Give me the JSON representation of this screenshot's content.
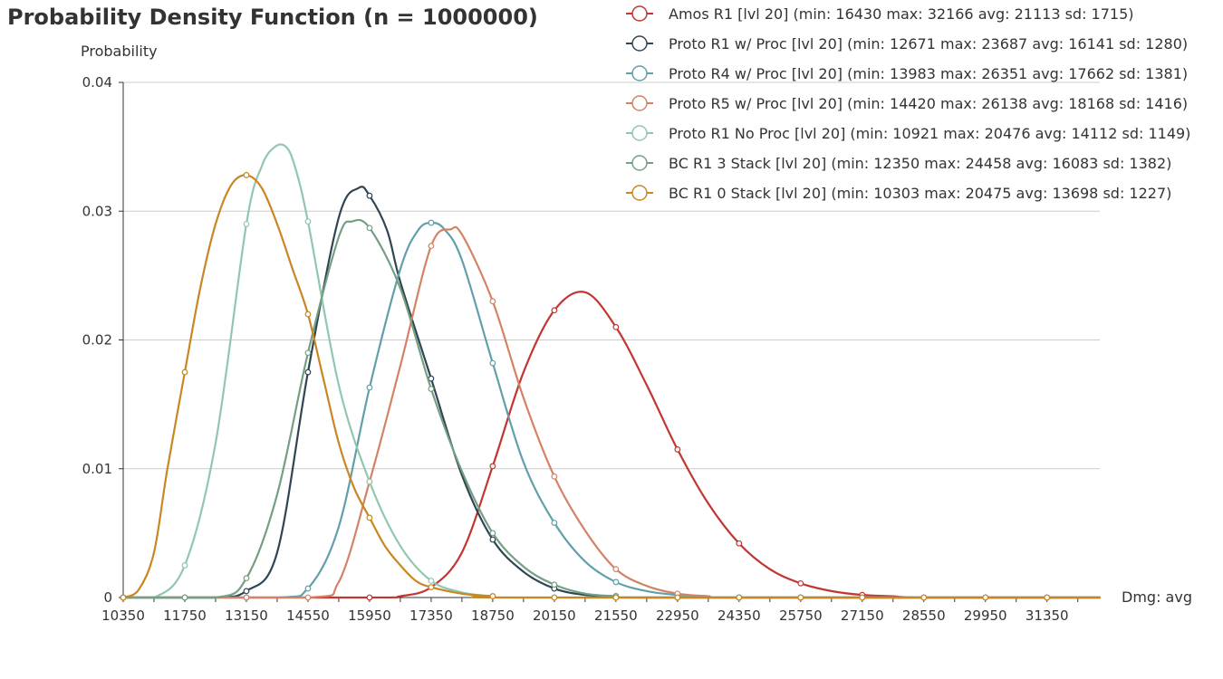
{
  "chart_data": {
    "type": "line",
    "title": "Probability Density Function (n = 1000000)",
    "xlabel": "Dmg: avg",
    "ylabel": "Probability",
    "xlim": [
      10350,
      32550
    ],
    "ylim": [
      0,
      0.04
    ],
    "x_ticks": [
      "10350",
      "11750",
      "13150",
      "14550",
      "15950",
      "17350",
      "18750",
      "20150",
      "21550",
      "22950",
      "24350",
      "25750",
      "27150",
      "28550",
      "29950",
      "31350"
    ],
    "y_ticks": [
      "0",
      "0.01",
      "0.02",
      "0.03",
      "0.04"
    ],
    "grid": true,
    "legend_position": "top-right",
    "series": [
      {
        "name": "Amos R1 [lvl 20] (min: 16430 max: 32166 avg: 21113 sd: 1715)",
        "color": "#c23531",
        "points": [
          [
            10350,
            0
          ],
          [
            15950,
            0
          ],
          [
            16650,
            0.0001
          ],
          [
            17350,
            0.0008
          ],
          [
            18050,
            0.0035
          ],
          [
            18750,
            0.0102
          ],
          [
            19450,
            0.0175
          ],
          [
            20150,
            0.0223
          ],
          [
            20850,
            0.0237
          ],
          [
            21550,
            0.021
          ],
          [
            22250,
            0.0165
          ],
          [
            22950,
            0.0115
          ],
          [
            23650,
            0.0073
          ],
          [
            24350,
            0.0042
          ],
          [
            25050,
            0.0022
          ],
          [
            25750,
            0.0011
          ],
          [
            26450,
            0.0005
          ],
          [
            27150,
            0.0002
          ],
          [
            27850,
            0.0001
          ],
          [
            28550,
            0
          ],
          [
            32550,
            0
          ]
        ],
        "markers": [
          [
            10350,
            0
          ],
          [
            13150,
            0
          ],
          [
            15950,
            0
          ],
          [
            18750,
            0.0102
          ],
          [
            20150,
            0.0223
          ],
          [
            21550,
            0.021
          ],
          [
            22950,
            0.0115
          ],
          [
            24350,
            0.0042
          ],
          [
            25750,
            0.0011
          ],
          [
            27150,
            0.0002
          ],
          [
            28550,
            0
          ],
          [
            29950,
            0
          ],
          [
            31350,
            0
          ]
        ]
      },
      {
        "name": "Proto R1 w/ Proc [lvl 20] (min: 12671 max: 23687 avg: 16141 sd: 1280)",
        "color": "#2f4554",
        "points": [
          [
            10350,
            0
          ],
          [
            12450,
            0
          ],
          [
            13150,
            0.0005
          ],
          [
            13850,
            0.0035
          ],
          [
            14550,
            0.0175
          ],
          [
            15250,
            0.0295
          ],
          [
            15700,
            0.0318
          ],
          [
            15950,
            0.0312
          ],
          [
            16350,
            0.0285
          ],
          [
            16650,
            0.0245
          ],
          [
            17350,
            0.017
          ],
          [
            18050,
            0.0095
          ],
          [
            18750,
            0.0045
          ],
          [
            19450,
            0.002
          ],
          [
            20150,
            0.0007
          ],
          [
            20850,
            0.0002
          ],
          [
            21550,
            0.0001
          ],
          [
            22250,
            0
          ],
          [
            32550,
            0
          ]
        ],
        "markers": [
          [
            10350,
            0
          ],
          [
            11750,
            0
          ],
          [
            13150,
            0.0005
          ],
          [
            14550,
            0.0175
          ],
          [
            15950,
            0.0312
          ],
          [
            17350,
            0.017
          ],
          [
            18750,
            0.0045
          ],
          [
            20150,
            0.0007
          ],
          [
            21550,
            0.0001
          ],
          [
            22950,
            0
          ],
          [
            24350,
            0
          ],
          [
            25750,
            0
          ]
        ]
      },
      {
        "name": "Proto R4 w/ Proc [lvl 20] (min: 13983 max: 26351 avg: 17662 sd: 1381)",
        "color": "#61a0a8",
        "points": [
          [
            10350,
            0
          ],
          [
            13850,
            0
          ],
          [
            14550,
            0.0007
          ],
          [
            15250,
            0.0055
          ],
          [
            15950,
            0.0163
          ],
          [
            16650,
            0.0255
          ],
          [
            17050,
            0.0285
          ],
          [
            17350,
            0.0291
          ],
          [
            17650,
            0.0286
          ],
          [
            18050,
            0.0262
          ],
          [
            18750,
            0.0182
          ],
          [
            19450,
            0.0105
          ],
          [
            20150,
            0.0058
          ],
          [
            20850,
            0.0028
          ],
          [
            21550,
            0.0012
          ],
          [
            22250,
            0.0005
          ],
          [
            22950,
            0.0002
          ],
          [
            23650,
            0.0001
          ],
          [
            24350,
            0
          ],
          [
            32550,
            0
          ]
        ],
        "markers": [
          [
            10350,
            0
          ],
          [
            13150,
            0
          ],
          [
            14550,
            0.0007
          ],
          [
            15950,
            0.0163
          ],
          [
            17350,
            0.0291
          ],
          [
            18750,
            0.0182
          ],
          [
            20150,
            0.0058
          ],
          [
            21550,
            0.0012
          ],
          [
            22950,
            0.0002
          ],
          [
            24350,
            0
          ],
          [
            25750,
            0
          ],
          [
            27150,
            0
          ]
        ]
      },
      {
        "name": "Proto R5 w/ Proc [lvl 20] (min: 14420 max: 26138 avg: 18168 sd: 1416)",
        "color": "#d48265",
        "points": [
          [
            10350,
            0
          ],
          [
            14550,
            0
          ],
          [
            15250,
            0.0012
          ],
          [
            15950,
            0.009
          ],
          [
            16650,
            0.018
          ],
          [
            17350,
            0.0273
          ],
          [
            17800,
            0.0286
          ],
          [
            18050,
            0.0282
          ],
          [
            18750,
            0.023
          ],
          [
            19450,
            0.0155
          ],
          [
            20150,
            0.0094
          ],
          [
            20850,
            0.0052
          ],
          [
            21550,
            0.0022
          ],
          [
            22250,
            0.0009
          ],
          [
            22950,
            0.0003
          ],
          [
            23650,
            0.0001
          ],
          [
            24350,
            0
          ],
          [
            32550,
            0
          ]
        ],
        "markers": [
          [
            10350,
            0
          ],
          [
            13150,
            0
          ],
          [
            14550,
            0
          ],
          [
            15950,
            0.009
          ],
          [
            17350,
            0.0273
          ],
          [
            18750,
            0.023
          ],
          [
            20150,
            0.0094
          ],
          [
            21550,
            0.0022
          ],
          [
            22950,
            0.0003
          ],
          [
            24350,
            0
          ],
          [
            25750,
            0
          ],
          [
            27150,
            0
          ]
        ]
      },
      {
        "name": "Proto R1 No Proc [lvl 20] (min: 10921 max: 20476 avg: 14112 sd: 1149)",
        "color": "#91c7ae",
        "points": [
          [
            10350,
            0
          ],
          [
            11050,
            0
          ],
          [
            11750,
            0.0025
          ],
          [
            12450,
            0.012
          ],
          [
            13150,
            0.029
          ],
          [
            13500,
            0.0335
          ],
          [
            13800,
            0.035
          ],
          [
            14050,
            0.035
          ],
          [
            14250,
            0.0335
          ],
          [
            14550,
            0.0292
          ],
          [
            15250,
            0.0165
          ],
          [
            15950,
            0.009
          ],
          [
            16650,
            0.004
          ],
          [
            17350,
            0.0013
          ],
          [
            18050,
            0.0004
          ],
          [
            18750,
            0.0001
          ],
          [
            19450,
            0
          ],
          [
            32550,
            0
          ]
        ],
        "markers": [
          [
            10350,
            0
          ],
          [
            11750,
            0.0025
          ],
          [
            13150,
            0.029
          ],
          [
            14550,
            0.0292
          ],
          [
            15950,
            0.009
          ],
          [
            17350,
            0.0013
          ],
          [
            18750,
            0.0001
          ],
          [
            20150,
            0
          ],
          [
            21550,
            0
          ],
          [
            22950,
            0
          ],
          [
            24350,
            0
          ]
        ]
      },
      {
        "name": "BC R1 3 Stack [lvl 20] (min: 12350 max: 24458 avg: 16083 sd: 1382)",
        "color": "#749f83",
        "points": [
          [
            10350,
            0
          ],
          [
            12450,
            0
          ],
          [
            13150,
            0.0015
          ],
          [
            13850,
            0.008
          ],
          [
            14550,
            0.019
          ],
          [
            15250,
            0.028
          ],
          [
            15550,
            0.0292
          ],
          [
            15950,
            0.0287
          ],
          [
            16650,
            0.024
          ],
          [
            17350,
            0.0162
          ],
          [
            18050,
            0.0098
          ],
          [
            18750,
            0.005
          ],
          [
            19450,
            0.0024
          ],
          [
            20150,
            0.001
          ],
          [
            20850,
            0.0003
          ],
          [
            21550,
            0.0001
          ],
          [
            22250,
            0
          ],
          [
            32550,
            0
          ]
        ],
        "markers": [
          [
            10350,
            0
          ],
          [
            11750,
            0
          ],
          [
            13150,
            0.0015
          ],
          [
            14550,
            0.019
          ],
          [
            15950,
            0.0287
          ],
          [
            17350,
            0.0162
          ],
          [
            18750,
            0.005
          ],
          [
            20150,
            0.001
          ],
          [
            21550,
            0.0001
          ],
          [
            22950,
            0
          ],
          [
            24350,
            0
          ]
        ]
      },
      {
        "name": "BC R1 0 Stack [lvl 20] (min: 10303 max: 20475 avg: 13698 sd: 1227)",
        "color": "#ca8622",
        "points": [
          [
            10350,
            0
          ],
          [
            10700,
            0.0006
          ],
          [
            11050,
            0.0035
          ],
          [
            11350,
            0.0099
          ],
          [
            11750,
            0.0175
          ],
          [
            12100,
            0.024
          ],
          [
            12450,
            0.029
          ],
          [
            12800,
            0.032
          ],
          [
            13150,
            0.0328
          ],
          [
            13500,
            0.0318
          ],
          [
            13850,
            0.029
          ],
          [
            14200,
            0.0255
          ],
          [
            14550,
            0.022
          ],
          [
            14900,
            0.017
          ],
          [
            15250,
            0.012
          ],
          [
            15600,
            0.0085
          ],
          [
            15950,
            0.0062
          ],
          [
            16300,
            0.004
          ],
          [
            16650,
            0.0025
          ],
          [
            17000,
            0.0013
          ],
          [
            17350,
            0.0008
          ],
          [
            18050,
            0.0003
          ],
          [
            18750,
            0.0001
          ],
          [
            19450,
            0
          ],
          [
            32550,
            0
          ]
        ],
        "markers": [
          [
            10350,
            0
          ],
          [
            11750,
            0.0175
          ],
          [
            13150,
            0.0328
          ],
          [
            14550,
            0.022
          ],
          [
            15950,
            0.0062
          ],
          [
            17350,
            0.0008
          ],
          [
            18750,
            0.0001
          ],
          [
            20150,
            0
          ],
          [
            21550,
            0
          ],
          [
            22950,
            0
          ],
          [
            24350,
            0
          ],
          [
            25750,
            0
          ],
          [
            27150,
            0
          ],
          [
            28550,
            0
          ],
          [
            29950,
            0
          ],
          [
            31350,
            0
          ]
        ]
      }
    ]
  }
}
